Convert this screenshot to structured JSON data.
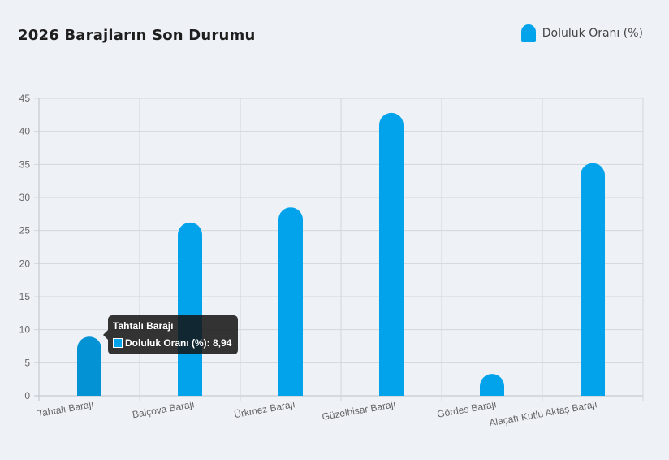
{
  "card": {
    "title": "2026 Barajların Son Durumu"
  },
  "colors": {
    "bar": "#03a3ec",
    "bar_hover": "#0392d4",
    "grid": "#d3d6dc",
    "axis": "#bfc3ca"
  },
  "chart_data": {
    "type": "bar",
    "categories": [
      "Tahtalı Barajı",
      "Balçova Barajı",
      "Ürkmez Barajı",
      "Güzelhisar Barajı",
      "Gördes Barajı",
      "Alaçatı Kutlu Aktaş Barajı"
    ],
    "series": [
      {
        "name": "Doluluk Oranı (%)",
        "values": [
          8.94,
          26.2,
          28.5,
          42.8,
          3.3,
          35.2
        ]
      }
    ],
    "title": "2026 Barajların Son Durumu",
    "xlabel": "",
    "ylabel": "",
    "ylim": [
      0,
      45
    ],
    "yticks": [
      "0",
      "5",
      "10",
      "15",
      "20",
      "25",
      "30",
      "35",
      "40",
      "45"
    ],
    "grid": true,
    "legend": "top-right",
    "tooltip": {
      "category_index": 0,
      "title": "Tahtalı Barajı",
      "label": "Doluluk Oranı (%): 8,94"
    }
  }
}
